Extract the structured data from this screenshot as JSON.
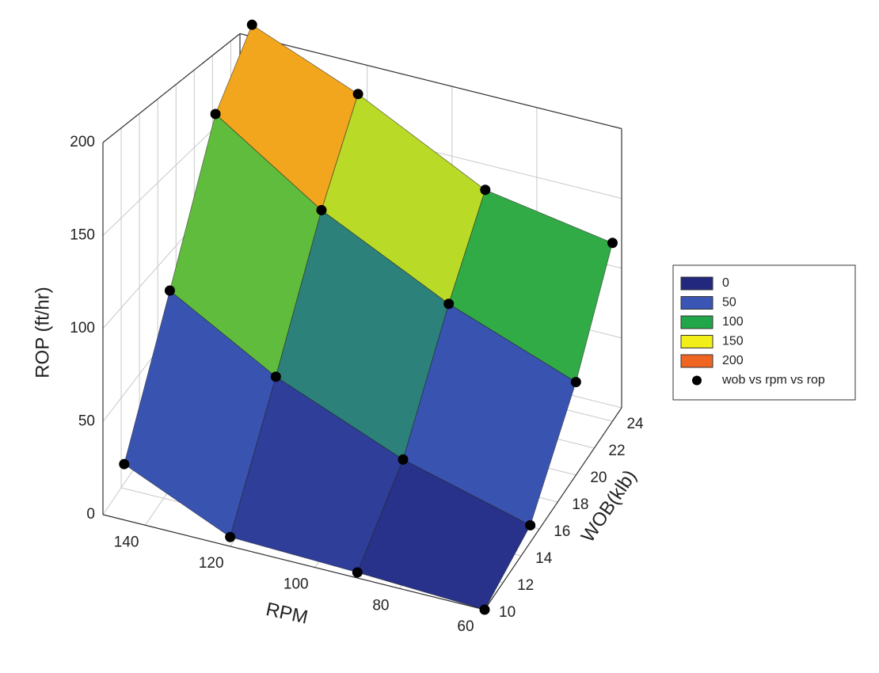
{
  "chart_data": {
    "type": "surface3d",
    "xlabel": "RPM",
    "ylabel": "WOB(klb)",
    "zlabel": "ROP (ft/hr)",
    "xlim": [
      60,
      150
    ],
    "xticks": [
      60,
      80,
      100,
      120,
      140
    ],
    "ylim": [
      10,
      25
    ],
    "yticks": [
      10,
      12,
      14,
      16,
      18,
      20,
      22,
      24
    ],
    "zlim": [
      0,
      200
    ],
    "zticks": [
      0,
      50,
      100,
      150,
      200
    ],
    "grid": true,
    "legend": "right",
    "colorscale": [
      {
        "value": 0,
        "color": "#23287f"
      },
      {
        "value": 50,
        "color": "#3a55b4"
      },
      {
        "value": 100,
        "color": "#21a64a"
      },
      {
        "value": 150,
        "color": "#f2ee1a"
      },
      {
        "value": 200,
        "color": "#f06522"
      }
    ],
    "series": [
      {
        "name": "wob vs rpm vs rop",
        "color": "#000000",
        "x": [
          145,
          120,
          90,
          60,
          145,
          120,
          90,
          60,
          145,
          120,
          90,
          60,
          145,
          120,
          90,
          60
        ],
        "y": [
          10,
          10,
          10,
          10,
          15,
          15,
          15,
          15,
          20,
          20,
          20,
          20,
          24,
          24,
          24,
          24
        ],
        "z": [
          30,
          5,
          3,
          0,
          95,
          60,
          30,
          10,
          175,
          130,
          90,
          60,
          215,
          185,
          140,
          125
        ]
      }
    ]
  }
}
